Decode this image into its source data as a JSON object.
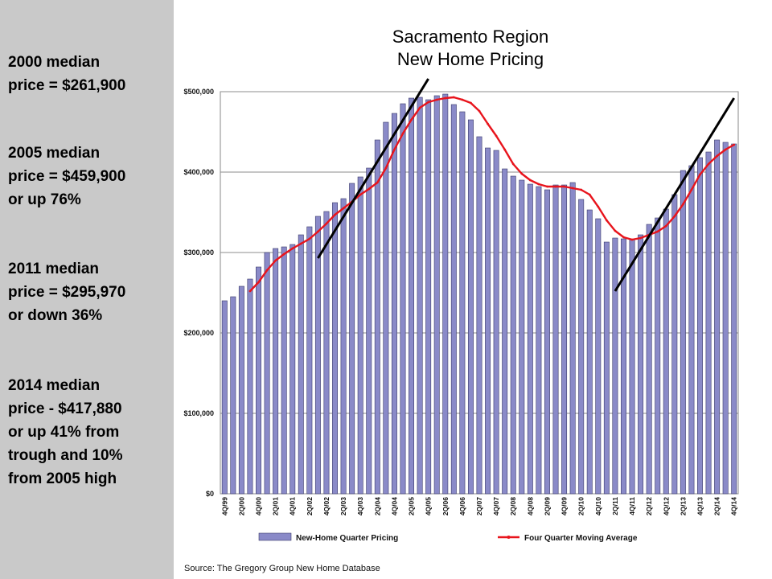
{
  "sidebar": {
    "stats": [
      "2000 median\nprice = $261,900",
      "2005 median\nprice = $459,900\nor up 76%",
      "2011 median\nprice = $295,970\nor down 36%",
      "2014 median\nprice - $417,880\nor up 41% from\ntrough and 10%\nfrom 2005 high"
    ]
  },
  "title": "Sacramento Region\nNew Home Pricing",
  "source": "Source: The Gregory Group New Home Database",
  "colors": {
    "bar": "#8a8ac8",
    "bar_stroke": "#3a3a6a",
    "line": "#e8141c",
    "trend": "#000000",
    "sidebar": "#c9c9c9"
  },
  "chart_data": {
    "type": "bar",
    "title": "Sacramento Region New Home Pricing",
    "ylim": [
      0,
      500000
    ],
    "y_ticks": [
      "$0",
      "$100,000",
      "$200,000",
      "$300,000",
      "$400,000",
      "$500,000"
    ],
    "grid": true,
    "legend": "bottom",
    "categories": [
      "4Q/99",
      "1Q/00",
      "2Q/00",
      "3Q/00",
      "4Q/00",
      "1Q/01",
      "2Q/01",
      "3Q/01",
      "4Q/01",
      "1Q/02",
      "2Q/02",
      "3Q/02",
      "4Q/02",
      "1Q/03",
      "2Q/03",
      "3Q/03",
      "4Q/03",
      "1Q/04",
      "2Q/04",
      "3Q/04",
      "4Q/04",
      "1Q/05",
      "2Q/05",
      "3Q/05",
      "4Q/05",
      "1Q/06",
      "2Q/06",
      "3Q/06",
      "4Q/06",
      "1Q/07",
      "2Q/07",
      "3Q/07",
      "4Q/07",
      "1Q/08",
      "2Q/08",
      "3Q/08",
      "4Q/08",
      "1Q/09",
      "2Q/09",
      "3Q/09",
      "4Q/09",
      "1Q/10",
      "2Q/10",
      "3Q/10",
      "4Q/10",
      "1Q/11",
      "2Q/11",
      "3Q/11",
      "4Q/11",
      "1Q/12",
      "2Q/12",
      "3Q/12",
      "4Q/12",
      "1Q/13",
      "2Q/13",
      "3Q/13",
      "4Q/13",
      "1Q/14",
      "2Q/14",
      "3Q/14",
      "4Q/14"
    ],
    "x_tick_labels": [
      "4Q/99",
      "2Q/00",
      "4Q/00",
      "2Q/01",
      "4Q/01",
      "2Q/02",
      "4Q/02",
      "2Q/03",
      "4Q/03",
      "2Q/04",
      "4Q/04",
      "2Q/05",
      "4Q/05",
      "2Q/06",
      "4Q/06",
      "2Q/07",
      "4Q/07",
      "2Q/08",
      "4Q/08",
      "2Q/09",
      "4Q/09",
      "2Q/10",
      "4Q/10",
      "2Q/11",
      "4Q/11",
      "2Q/12",
      "4Q/12",
      "2Q/13",
      "4Q/13",
      "2Q/14",
      "4Q/14"
    ],
    "series": [
      {
        "name": "New-Home Quarter Pricing",
        "type": "bar",
        "values": [
          240000,
          245000,
          258000,
          267000,
          282000,
          300000,
          305000,
          307000,
          310000,
          322000,
          332000,
          345000,
          351000,
          362000,
          367000,
          386000,
          394000,
          405000,
          440000,
          462000,
          473000,
          485000,
          492000,
          493000,
          490000,
          495000,
          497000,
          484000,
          475000,
          465000,
          444000,
          430000,
          427000,
          404000,
          395000,
          390000,
          385000,
          382000,
          378000,
          384000,
          384000,
          387000,
          366000,
          353000,
          342000,
          313000,
          318000,
          317000,
          316000,
          322000,
          335000,
          343000,
          354000,
          372000,
          402000,
          408000,
          418000,
          425000,
          440000,
          437000,
          435000
        ]
      },
      {
        "name": "Four Quarter Moving Average",
        "type": "line",
        "values": [
          null,
          null,
          null,
          252000,
          263000,
          278000,
          290000,
          298000,
          305000,
          311000,
          317000,
          326000,
          336000,
          347000,
          355000,
          363000,
          372000,
          379000,
          387000,
          405000,
          428000,
          448000,
          465000,
          480000,
          487000,
          490000,
          492000,
          493000,
          490000,
          486000,
          476000,
          460000,
          445000,
          428000,
          410000,
          398000,
          390000,
          385000,
          382000,
          382000,
          382000,
          380000,
          378000,
          372000,
          357000,
          340000,
          327000,
          319000,
          316000,
          318000,
          322000,
          326000,
          333000,
          345000,
          360000,
          378000,
          397000,
          410000,
          420000,
          428000,
          434000
        ]
      }
    ],
    "trend_lines": [
      {
        "from": {
          "x": "3Q/02",
          "y": 293000
        },
        "to": {
          "x": "4Q/05",
          "y": 516000
        }
      },
      {
        "from": {
          "x": "2Q/11",
          "y": 252000
        },
        "to": {
          "x": "4Q/14",
          "y": 492000
        }
      }
    ]
  }
}
